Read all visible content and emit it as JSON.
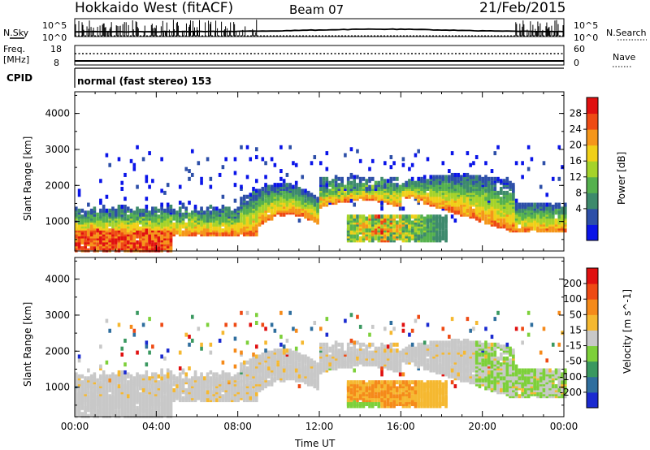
{
  "header": {
    "site": "Hokkaido West (fitACF)",
    "beam": "Beam 07",
    "date": "21/Feb/2015"
  },
  "top_panels": {
    "nsky": {
      "label": "N.Sky",
      "hi": "10^5",
      "lo": "10^0"
    },
    "nsearch": {
      "label": "N.Search",
      "hi": "10^5",
      "lo": "10^0"
    },
    "freq": {
      "label1": "Freq.",
      "label2": "[MHz]",
      "hi": "18",
      "lo": "8"
    },
    "nave": {
      "label": "Nave",
      "hi": "60",
      "lo": "0"
    },
    "cpid": {
      "label": "CPID",
      "mode": "normal (fast stereo) 153"
    }
  },
  "chart_data": [
    {
      "type": "heatmap",
      "title": "",
      "quantity": "Power",
      "xlabel": "",
      "ylabel": "Slant Range [km]",
      "y_ticks": [
        "4000",
        "3000",
        "2000",
        "1000"
      ],
      "x_ticks": [],
      "ylim": [
        180,
        4600
      ],
      "xlim_hours": [
        0,
        24
      ],
      "colorbar": {
        "label": "Power [dB]",
        "ticks": [
          "28",
          "24",
          "20",
          "16",
          "12",
          "8",
          "4"
        ],
        "colors": [
          "#0a14e8",
          "#2d4fa8",
          "#3d8a6c",
          "#55b14e",
          "#a5d32a",
          "#f0d018",
          "#f5961a",
          "#ee4b14",
          "#e01010"
        ]
      },
      "regions": [
        {
          "name": "dayside-main-echo-band",
          "t0": 0,
          "t1": 9,
          "r0": 650,
          "r1": 1500
        },
        {
          "name": "morning-ground-scatter",
          "t0": 0,
          "t1": 4.5,
          "r0": 300,
          "r1": 750
        },
        {
          "name": "noon-arc",
          "t0": 9,
          "t1": 13,
          "r0": 1300,
          "r1": 2100
        },
        {
          "name": "afternoon-strong-echo",
          "t0": 13.5,
          "t1": 18,
          "r0": 500,
          "r1": 1150
        },
        {
          "name": "evening-arc",
          "t0": 16,
          "t1": 21.5,
          "r0": 1000,
          "r1": 2200
        },
        {
          "name": "late-evening-band",
          "t0": 21.5,
          "t1": 24,
          "r0": 700,
          "r1": 1600
        }
      ]
    },
    {
      "type": "heatmap",
      "title": "",
      "quantity": "Velocity",
      "xlabel": "Time UT",
      "ylabel": "Slant Range [km]",
      "y_ticks": [
        "4000",
        "3000",
        "2000",
        "1000"
      ],
      "x_ticks": [
        "00:00",
        "04:00",
        "08:00",
        "12:00",
        "16:00",
        "20:00",
        "00:00"
      ],
      "ylim": [
        180,
        4600
      ],
      "xlim_hours": [
        0,
        24
      ],
      "colorbar": {
        "label": "Velocity [m s^-1]",
        "ticks": [
          "200",
          "100",
          "50",
          "15",
          "-15",
          "-50",
          "-100",
          "-200"
        ],
        "colors": [
          "#1a2ad0",
          "#2f6e9e",
          "#3a9860",
          "#7dd03a",
          "#c8c8c8",
          "#f5b830",
          "#f58a1a",
          "#ee4a14",
          "#e01010"
        ]
      },
      "regions": [
        {
          "name": "grey-ground-scatter-band",
          "t0": 0,
          "t1": 11,
          "r0": 600,
          "r1": 1500
        },
        {
          "name": "noon-arc",
          "t0": 9,
          "t1": 13,
          "r0": 1300,
          "r1": 2100
        },
        {
          "name": "orange-negative-velocity-patch",
          "t0": 13.5,
          "t1": 17.5,
          "r0": 500,
          "r1": 1500
        },
        {
          "name": "evening-grey-arc",
          "t0": 16,
          "t1": 21.5,
          "r0": 1000,
          "r1": 2200
        },
        {
          "name": "green-positive-velocity-tail",
          "t0": 20,
          "t1": 24,
          "r0": 700,
          "r1": 1600
        }
      ]
    }
  ]
}
